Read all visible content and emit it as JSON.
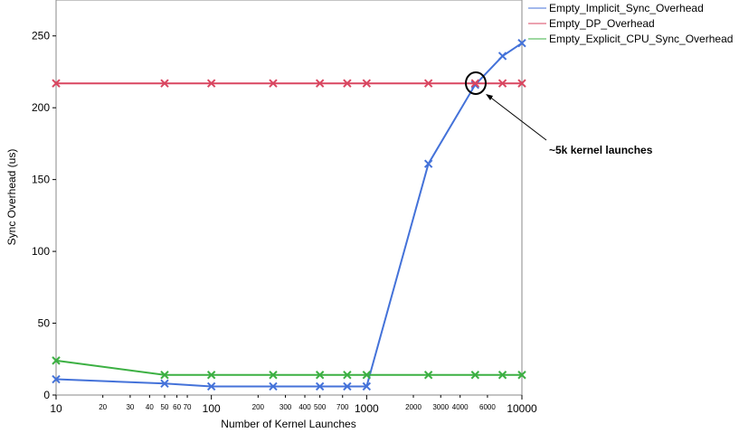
{
  "chart_data": {
    "type": "line",
    "x_scale": "log",
    "xlabel": "Number of Kernel Launches",
    "ylabel": "Sync Overhead (us)",
    "xlim": [
      10,
      10000
    ],
    "ylim": [
      0,
      275
    ],
    "grid": false,
    "legend_position": "top-right",
    "x_ticks_major": [
      10,
      100,
      1000,
      10000
    ],
    "x_ticks_minor": [
      20,
      30,
      40,
      50,
      60,
      70,
      200,
      300,
      400,
      500,
      700,
      2000,
      3000,
      4000,
      6000
    ],
    "y_ticks": [
      0,
      50,
      100,
      150,
      200,
      250
    ],
    "series": [
      {
        "name": "Empty_Implicit_Sync_Overhead",
        "color": "#4472d9",
        "x": [
          10,
          50,
          100,
          250,
          500,
          750,
          1000,
          2500,
          5000,
          7500,
          10000
        ],
        "y": [
          11,
          8,
          6,
          6,
          6,
          6,
          6,
          161,
          216,
          236,
          245
        ]
      },
      {
        "name": "Empty_DP_Overhead",
        "color": "#d94660",
        "x": [
          10,
          50,
          100,
          250,
          500,
          750,
          1000,
          2500,
          5000,
          7500,
          10000
        ],
        "y": [
          217,
          217,
          217,
          217,
          217,
          217,
          217,
          217,
          217,
          217,
          217
        ]
      },
      {
        "name": "Empty_Explicit_CPU_Sync_Overhead",
        "color": "#3cb043",
        "x": [
          10,
          50,
          100,
          250,
          500,
          750,
          1000,
          2500,
          5000,
          7500,
          10000
        ],
        "y": [
          24,
          14,
          14,
          14,
          14,
          14,
          14,
          14,
          14,
          14,
          14
        ]
      }
    ],
    "annotation": {
      "text": "~5k kernel launches",
      "x": 5000,
      "y": 217
    }
  }
}
